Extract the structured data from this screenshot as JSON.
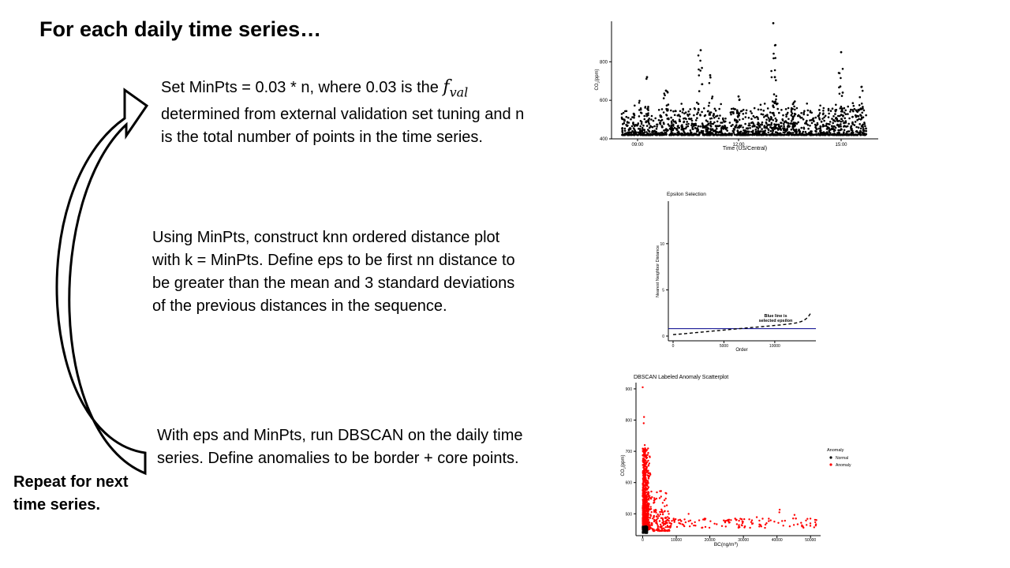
{
  "title": "For each daily time series…",
  "steps": {
    "step1_a": "Set MinPts = 0.03 * n, where 0.03 is the ",
    "step1_math_main": "f",
    "step1_math_sub": "val",
    "step1_b": "determined from external validation set tuning and n is the total number of points in the time series.",
    "step2": "Using MinPts, construct knn ordered distance plot with k = MinPts. Define eps to be first nn distance to be greater than the mean and 3 standard deviations of the previous distances in the sequence.",
    "step3": "With eps and MinPts, run DBSCAN on the daily time series. Define anomalies to be border + core points."
  },
  "repeat": {
    "line1": "Repeat for next",
    "line2": "time series."
  },
  "colors": {
    "normal": "#000000",
    "anomaly": "#ff0000",
    "epsilon_line": "#00008b"
  },
  "chart_data": [
    {
      "type": "scatter",
      "title": "",
      "xlabel": "Time (US/Central)",
      "ylabel_main": "CO",
      "ylabel_sub": "2",
      "ylabel_unit": "(ppm)",
      "x_ticks": [
        "09:00",
        "12:00",
        "15:00"
      ],
      "y_ticks": [
        "400",
        "600",
        "800"
      ],
      "ylim": [
        400,
        1010
      ],
      "grid": false
    },
    {
      "type": "line",
      "title": "Epsilon Selection",
      "xlabel": "Order",
      "ylabel": "Nearest Neighbor Distance",
      "x_ticks": [
        "0",
        "5000",
        "10000"
      ],
      "y_ticks": [
        "0",
        "5",
        "10"
      ],
      "xlim": [
        0,
        13500
      ],
      "ylim": [
        0,
        14
      ],
      "epsilon": 0.8,
      "annotation_line1": "Blue line is",
      "annotation_line2": "selected epsilon",
      "grid": false
    },
    {
      "type": "scatter",
      "title": "DBSCAN Labeled Anomaly Scatterplot",
      "xlabel_main": "BC(ng/m",
      "xlabel_sup": "3",
      "xlabel_end": ")",
      "ylabel_main": "CO",
      "ylabel_sub": "2",
      "ylabel_unit": "(ppm)",
      "x_ticks": [
        "0",
        "10000",
        "20000",
        "30000",
        "40000",
        "50000"
      ],
      "y_ticks": [
        "500",
        "600",
        "700",
        "800",
        "900"
      ],
      "xlim": [
        -2000,
        53000
      ],
      "ylim": [
        430,
        920
      ],
      "legend_title": "Anomaly",
      "legend": [
        "Normal",
        "Anomaly"
      ],
      "legend_position": "right",
      "grid": false
    }
  ]
}
